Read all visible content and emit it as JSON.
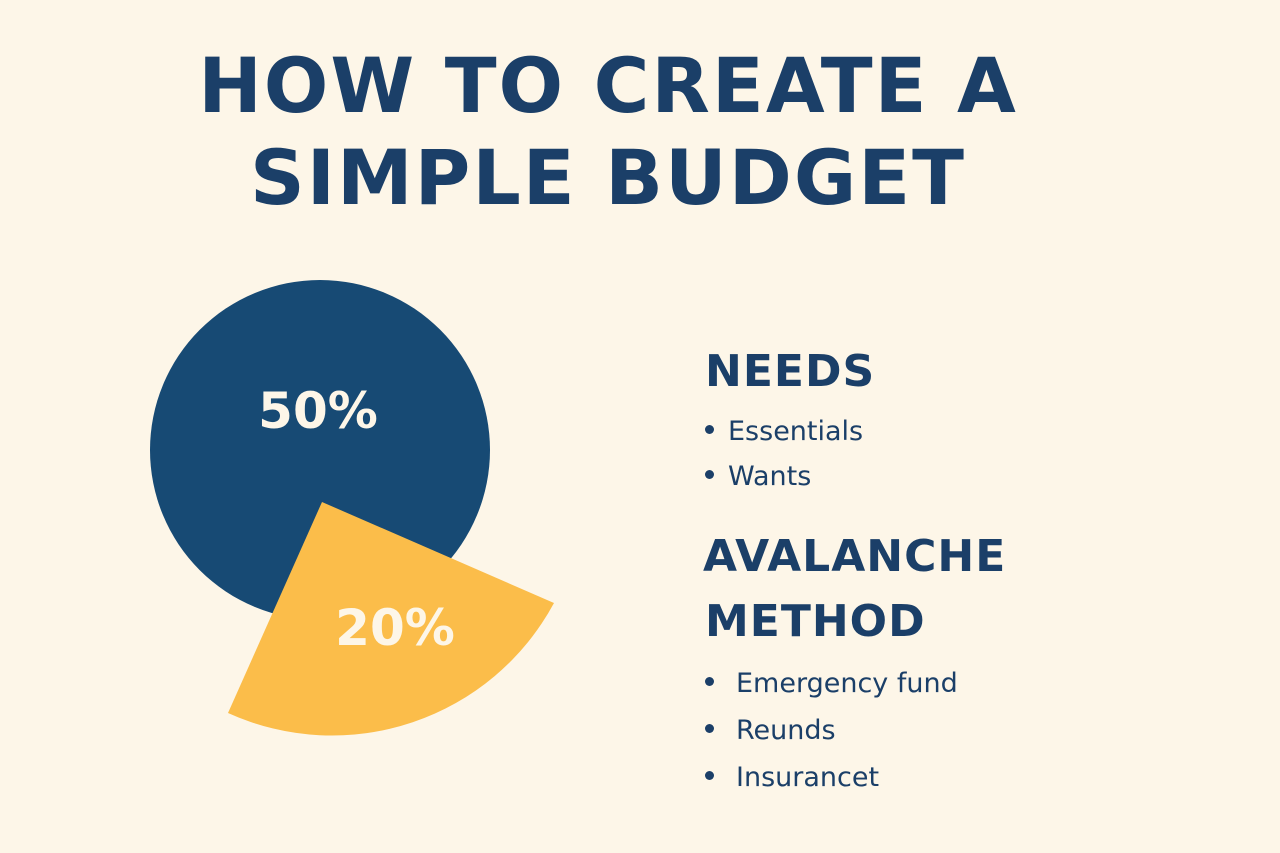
{
  "title": {
    "line1": "HOW TO CREATE A",
    "line2": "SIMPLE BUDGET"
  },
  "colors": {
    "background": "#fdf6e8",
    "navy": "#174a74",
    "yellow": "#fbbd4a",
    "label_text": "#fdf6e8"
  },
  "chart_data": {
    "type": "pie",
    "slices": [
      {
        "label": "50%",
        "value": 50,
        "color": "#174a74"
      },
      {
        "label": "20%",
        "value": 20,
        "color": "#fbbd4a",
        "exploded": true
      }
    ]
  },
  "sections": [
    {
      "heading": "NEEDS",
      "items": [
        "Essentials",
        "Wants"
      ]
    },
    {
      "heading_line1": "AVALANCHE",
      "heading_line2": "METHOD",
      "items": [
        "Emergency fund",
        "Reunds",
        "Insurancet"
      ]
    }
  ]
}
